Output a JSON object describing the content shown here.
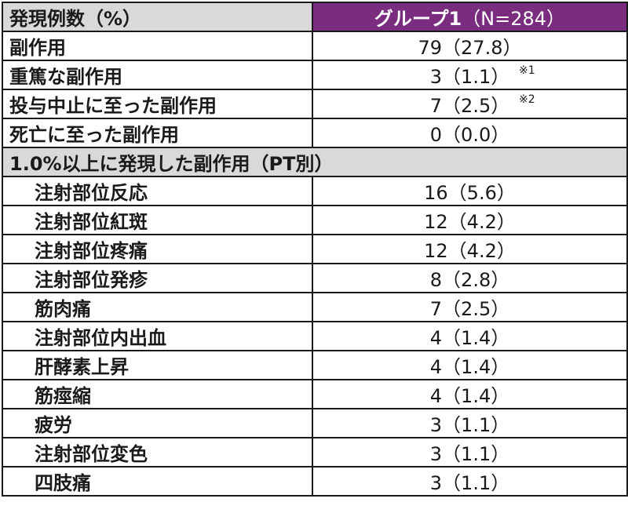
{
  "header": {
    "label": "発現例数（%）",
    "group_name": "グループ1",
    "group_n": "（N=284）"
  },
  "rows": [
    {
      "label": "副作用",
      "value": "79（27.8）",
      "note": ""
    },
    {
      "label": "重篤な副作用",
      "value": "3（1.1）",
      "note": "※1"
    },
    {
      "label": "投与中止に至った副作用",
      "value": "7（2.5）",
      "note": "※2"
    },
    {
      "label": "死亡に至った副作用",
      "value": "0（0.0）",
      "note": ""
    }
  ],
  "section": {
    "label": "1.0%以上に発現した副作用（PT別）"
  },
  "pt_rows": [
    {
      "label": "注射部位反応",
      "value": "16（5.6）"
    },
    {
      "label": "注射部位紅斑",
      "value": "12（4.2）"
    },
    {
      "label": "注射部位疼痛",
      "value": "12（4.2）"
    },
    {
      "label": "注射部位発疹",
      "value": "8（2.8）"
    },
    {
      "label": "筋肉痛",
      "value": "7（2.5）"
    },
    {
      "label": "注射部位内出血",
      "value": "4（1.4）"
    },
    {
      "label": "肝酵素上昇",
      "value": "4（1.4）"
    },
    {
      "label": "筋痙縮",
      "value": "4（1.4）"
    },
    {
      "label": "疲労",
      "value": "3（1.1）"
    },
    {
      "label": "注射部位変色",
      "value": "3（1.1）"
    },
    {
      "label": "四肢痛",
      "value": "3（1.1）"
    }
  ],
  "colors": {
    "group_header_bg": "#7a2d7e",
    "header_bg": "#d9d9d9",
    "border": "#1a1a1a"
  }
}
